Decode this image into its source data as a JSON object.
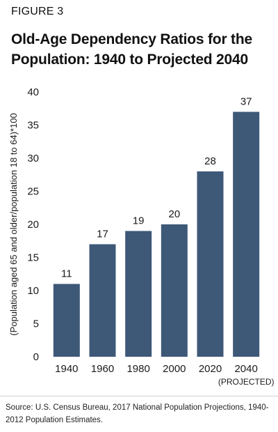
{
  "header": {
    "figure_label": "FIGURE 3",
    "title": "Old-Age Dependency Ratios for the Population: 1940 to Projected 2040"
  },
  "chart_data": {
    "type": "bar",
    "categories": [
      "1940",
      "1960",
      "1980",
      "2000",
      "2020",
      "2040"
    ],
    "category_sublabels": [
      "",
      "",
      "",
      "",
      "",
      "(PROJECTED)"
    ],
    "values": [
      11,
      17,
      19,
      20,
      28,
      37
    ],
    "data_labels": [
      "11",
      "17",
      "19",
      "20",
      "28",
      "37"
    ],
    "ylabel": "(Population aged 65 and older/population 18 to 64)*100",
    "xlabel": "",
    "ylim": [
      0,
      40
    ],
    "yticks": [
      0,
      5,
      10,
      15,
      20,
      25,
      30,
      35,
      40
    ],
    "grid": false,
    "bar_color": "#3e5878"
  },
  "footer": {
    "source": "Source: U.S. Census Bureau, 2017 National Population Projections, 1940-2012 Population Estimates."
  }
}
